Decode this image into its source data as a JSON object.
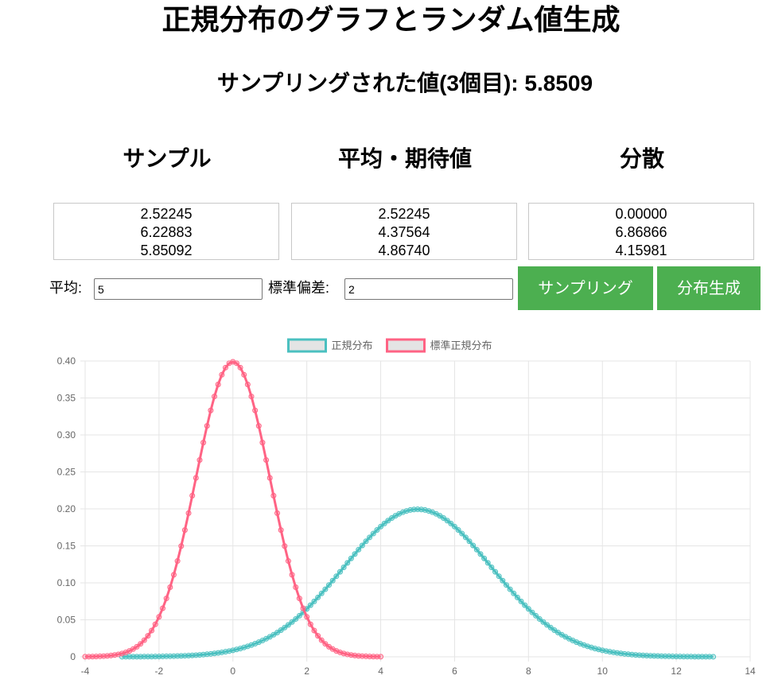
{
  "header": {
    "title": "正規分布のグラフとランダム値生成",
    "sample_label": "サンプリングされた値(3個目): 5.8509"
  },
  "table": {
    "headers": [
      "サンプル",
      "平均・期待値",
      "分散"
    ],
    "samples": [
      "2.52245",
      "6.22883",
      "5.85092"
    ],
    "means": [
      "2.52245",
      "4.37564",
      "4.86740"
    ],
    "variances": [
      "0.00000",
      "6.86866",
      "4.15981"
    ]
  },
  "controls": {
    "mean_label": "平均:",
    "mean_value": "5",
    "sd_label": "標準偏差:",
    "sd_value": "2",
    "sample_button": "サンプリング",
    "generate_button": "分布生成"
  },
  "chart_data": {
    "type": "line",
    "xlim": [
      -4,
      14
    ],
    "ylim": [
      0,
      0.4
    ],
    "x_ticks": [
      "-4",
      "-2",
      "0",
      "2",
      "4",
      "6",
      "8",
      "10",
      "12",
      "14"
    ],
    "y_ticks": [
      "0",
      "0.05",
      "0.10",
      "0.15",
      "0.20",
      "0.25",
      "0.30",
      "0.35",
      "0.40"
    ],
    "legend_position": "top-center",
    "grid": true,
    "series": [
      {
        "name": "正規分布",
        "color": "#4bc0c0",
        "mean": 5,
        "sd": 2,
        "x_start": -3,
        "x_end": 13,
        "step": 0.1
      },
      {
        "name": "標準正規分布",
        "color": "#ff6384",
        "mean": 0,
        "sd": 1,
        "x_start": -4,
        "x_end": 4,
        "step": 0.1
      }
    ]
  }
}
